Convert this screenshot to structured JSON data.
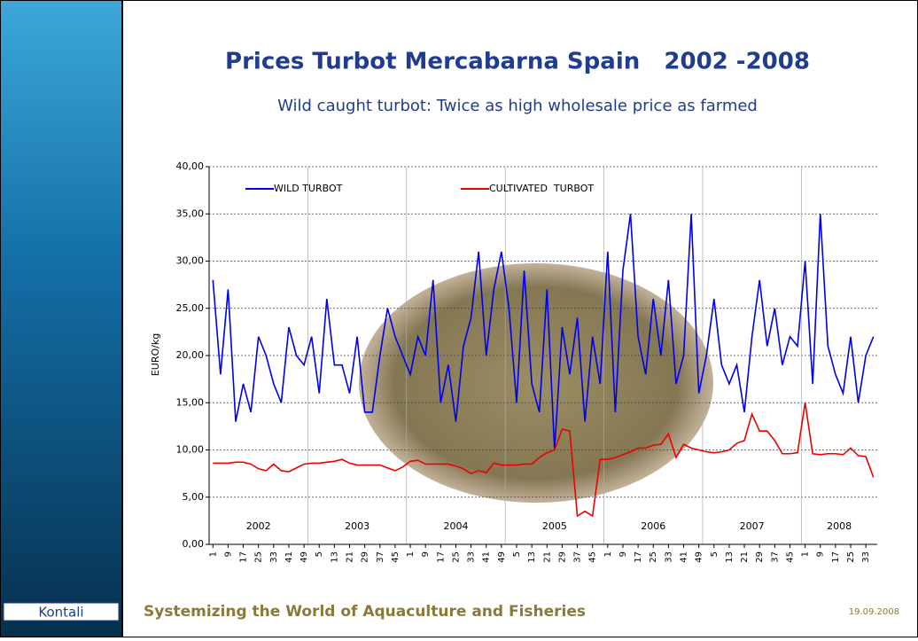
{
  "chart_data": {
    "type": "line",
    "title": "Prices Turbot Mercabarna Spain   2002 -2008",
    "subtitle": "Wild caught turbot: Twice as high wholesale price as farmed",
    "y_label": "EURO/kg",
    "categories": [
      "1",
      null,
      "9",
      null,
      "17",
      null,
      "25",
      null,
      "33",
      null,
      "41",
      null,
      "49",
      null,
      "5",
      null,
      "13",
      null,
      "21",
      null,
      "29",
      null,
      "37",
      null,
      "45",
      null,
      "1",
      null,
      "9",
      null,
      "17",
      null,
      "25",
      null,
      "33",
      null,
      "41",
      null,
      "49",
      null,
      "5",
      null,
      "13",
      null,
      "21",
      null,
      "29",
      null,
      "37",
      null,
      "45",
      null,
      "1",
      null,
      "9",
      null,
      "17",
      null,
      "25",
      null,
      "33",
      null,
      "41",
      null,
      "49",
      null,
      "5",
      null,
      "13",
      null,
      "21",
      null,
      "29",
      null,
      "37",
      null,
      "45",
      null,
      "1",
      null,
      "9",
      null,
      "17",
      null,
      "25",
      null,
      "33",
      null
    ],
    "year_labels": [
      "2002",
      "2003",
      "2004",
      "2005",
      "2006",
      "2007",
      "2008"
    ],
    "series": [
      {
        "name": "WILD TURBOT",
        "color": "#0000ee",
        "values": [
          28,
          18,
          27,
          13,
          17,
          14,
          22,
          20,
          17,
          15,
          23,
          20,
          19,
          22,
          16,
          26,
          19,
          19,
          16,
          22,
          14,
          14,
          20,
          25,
          22,
          20,
          18,
          22,
          20,
          28,
          15,
          19,
          13,
          21,
          24,
          31,
          20,
          27,
          31,
          25,
          15,
          29,
          17,
          14,
          27,
          10,
          23,
          18,
          24,
          13,
          22,
          17,
          31,
          14,
          29,
          35,
          22,
          18,
          26,
          20,
          28,
          17,
          20,
          35,
          16,
          20,
          26,
          19,
          17,
          19,
          14,
          22,
          28,
          21,
          25,
          19,
          22,
          21,
          30,
          17,
          35,
          21,
          18,
          16,
          22,
          15,
          20,
          22
        ]
      },
      {
        "name": "CULTIVATED  TURBOT",
        "color": "#ee0000",
        "values": [
          8.6,
          8.6,
          8.6,
          8.7,
          8.7,
          8.5,
          8.0,
          7.8,
          8.5,
          7.8,
          7.7,
          8.1,
          8.5,
          8.6,
          8.6,
          8.7,
          8.8,
          9.0,
          8.6,
          8.4,
          8.4,
          8.4,
          8.4,
          8.1,
          7.8,
          8.2,
          8.8,
          8.9,
          8.5,
          8.5,
          8.5,
          8.5,
          8.3,
          8.0,
          7.5,
          7.8,
          7.6,
          8.6,
          8.4,
          8.4,
          8.4,
          8.5,
          8.5,
          9.2,
          9.7,
          10.0,
          12.2,
          12.0,
          3.0,
          3.5,
          3.0,
          9.0,
          9.0,
          9.2,
          9.5,
          9.8,
          10.2,
          10.2,
          10.5,
          10.6,
          11.7,
          9.2,
          10.6,
          10.2,
          10.0,
          9.8,
          9.7,
          9.8,
          10.0,
          10.7,
          11.0,
          13.8,
          12.0,
          12.0,
          11.0,
          9.6,
          9.6,
          9.7,
          15.0,
          9.6,
          9.5,
          9.6,
          9.6,
          9.5,
          10.2,
          9.4,
          9.3,
          7.1
        ]
      }
    ],
    "ylim": [
      0,
      40
    ],
    "yticks": [
      {
        "value": 0,
        "label": "0,00"
      },
      {
        "value": 5,
        "label": "5,00"
      },
      {
        "value": 10,
        "label": "10,00"
      },
      {
        "value": 15,
        "label": "15,00"
      },
      {
        "value": 20,
        "label": "20,00"
      },
      {
        "value": 25,
        "label": "25,00"
      },
      {
        "value": 30,
        "label": "30,00"
      },
      {
        "value": 35,
        "label": "35,00"
      },
      {
        "value": 40,
        "label": "40,00"
      }
    ],
    "grid": true
  },
  "footer": {
    "logo": "Kontali",
    "tagline": "Systemizing the World of Aquaculture and Fisheries",
    "date": "19.09.2008"
  }
}
